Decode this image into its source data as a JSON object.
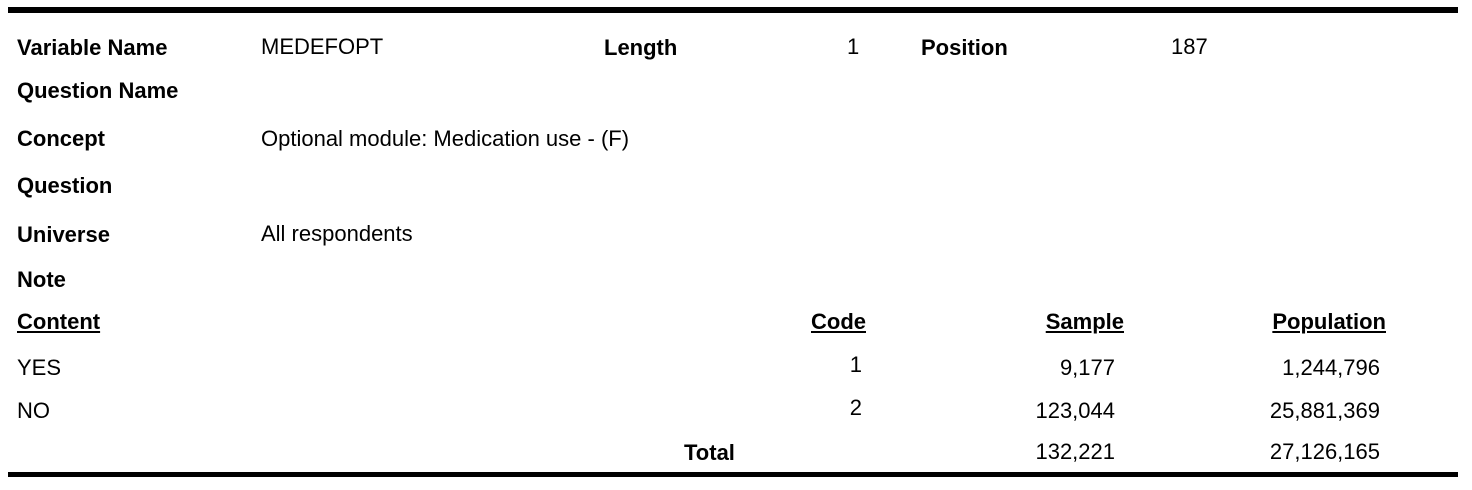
{
  "header": {
    "variable_name_label": "Variable  Name",
    "variable_name": "MEDEFOPT",
    "length_label": "Length",
    "length": "1",
    "position_label": "Position",
    "position": "187"
  },
  "fields": {
    "question_name_label": "Question Name",
    "question_name": "",
    "concept_label": "Concept",
    "concept": "Optional module: Medication use - (F)",
    "question_label": "Question",
    "question": "",
    "universe_label": "Universe",
    "universe": "All respondents",
    "note_label": "Note",
    "note": ""
  },
  "table": {
    "columns": [
      "Content",
      "Code",
      "Sample",
      "Population"
    ],
    "rows": [
      {
        "content": "YES",
        "code": "1",
        "sample": "9,177",
        "population": "1,244,796"
      },
      {
        "content": "NO",
        "code": "2",
        "sample": "123,044",
        "population": "25,881,369"
      }
    ],
    "total": {
      "label": "Total",
      "sample": "132,221",
      "population": "27,126,165"
    }
  }
}
